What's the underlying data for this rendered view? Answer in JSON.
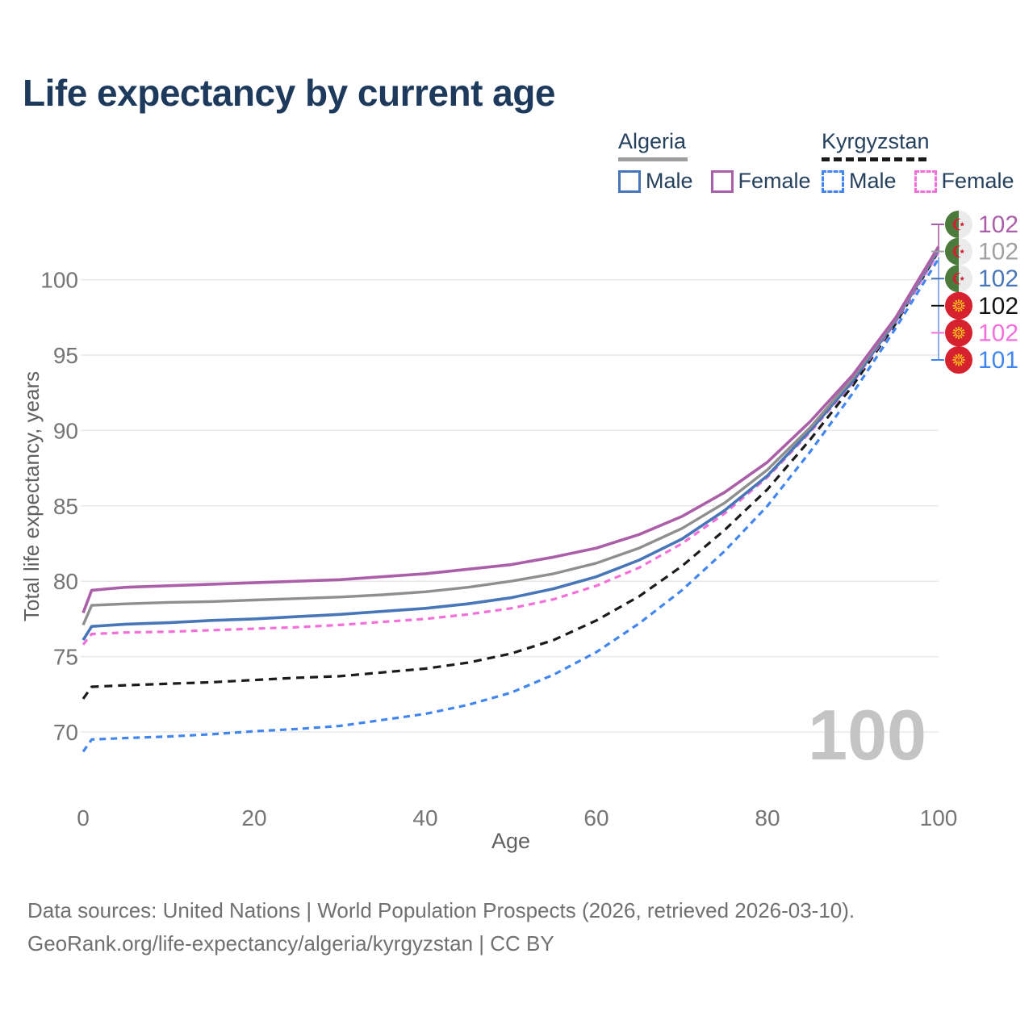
{
  "title": "Life expectancy by current age",
  "colors": {
    "title_text": "#1d3a5c",
    "axis_text": "#757575",
    "gridline": "#e8e8e8",
    "watermark": "#c4c4c4",
    "leader_bracket": "#6f9ce0",
    "algeria_flag_green": "#4c7a3c",
    "algeria_flag_white": "#ebebeb",
    "algeria_flag_red": "#d21f34",
    "kyrgyzstan_flag_red": "#d6212f",
    "kyrgyzstan_flag_yellow": "#fdcd1f"
  },
  "legend": {
    "groups": [
      {
        "country": "Algeria",
        "underline_color": "#9e9e9e",
        "underline_style": "solid",
        "underline_width": 86,
        "items": [
          {
            "label": "Male",
            "color": "#4776b9",
            "dashed": false
          },
          {
            "label": "Female",
            "color": "#ab5fa8",
            "dashed": false
          }
        ]
      },
      {
        "country": "Kyrgyzstan",
        "underline_color": "#1b1b1b",
        "underline_style": "dashed",
        "underline_width": 130,
        "items": [
          {
            "label": "Male",
            "color": "#4186f0",
            "dashed": true
          },
          {
            "label": "Female",
            "color": "#f36fd9",
            "dashed": true
          }
        ]
      }
    ]
  },
  "chart_data": {
    "type": "line",
    "title": "Life expectancy by current age",
    "xlabel": "Age",
    "ylabel": "Total life expectancy, years",
    "xlim": [
      0,
      100
    ],
    "ylim": [
      67,
      104
    ],
    "x_ticks": [
      0,
      20,
      40,
      60,
      80,
      100
    ],
    "y_ticks": [
      70,
      75,
      80,
      85,
      90,
      95,
      100
    ],
    "grid": "horizontal-only",
    "legend_position": "top-right",
    "x": [
      0,
      1,
      5,
      10,
      15,
      20,
      25,
      30,
      35,
      40,
      45,
      50,
      55,
      60,
      65,
      70,
      75,
      80,
      85,
      90,
      95,
      100
    ],
    "series": [
      {
        "name": "Algeria Female",
        "color": "#ab5fa8",
        "dash": null,
        "width": 3.6,
        "values": [
          77.9,
          79.4,
          79.6,
          79.7,
          79.8,
          79.9,
          80.0,
          80.1,
          80.3,
          80.5,
          80.8,
          81.1,
          81.6,
          82.2,
          83.1,
          84.3,
          85.9,
          87.9,
          90.6,
          93.7,
          97.5,
          102.2
        ]
      },
      {
        "name": "Algeria Both sexes",
        "color": "#8f8f8f",
        "dash": null,
        "width": 3.4,
        "values": [
          77.1,
          78.4,
          78.5,
          78.6,
          78.65,
          78.75,
          78.85,
          78.95,
          79.1,
          79.3,
          79.6,
          80.0,
          80.5,
          81.2,
          82.2,
          83.5,
          85.2,
          87.4,
          90.2,
          93.5,
          97.4,
          102.1
        ]
      },
      {
        "name": "Algeria Male",
        "color": "#4776b9",
        "dash": null,
        "width": 3.6,
        "values": [
          76.1,
          77.0,
          77.15,
          77.25,
          77.4,
          77.5,
          77.65,
          77.8,
          78.0,
          78.2,
          78.5,
          78.9,
          79.5,
          80.3,
          81.4,
          82.8,
          84.7,
          87.0,
          90.0,
          93.3,
          97.3,
          102.0
        ]
      },
      {
        "name": "Kyrgyzstan Both sexes",
        "color": "#1b1b1b",
        "dash": "10 7",
        "width": 3.2,
        "values": [
          72.2,
          73.0,
          73.1,
          73.2,
          73.3,
          73.45,
          73.6,
          73.7,
          73.95,
          74.2,
          74.6,
          75.2,
          76.1,
          77.4,
          79.0,
          81.0,
          83.4,
          86.1,
          89.4,
          93.0,
          97.1,
          101.9
        ]
      },
      {
        "name": "Kyrgyzstan Female",
        "color": "#f36fd9",
        "dash": "8 6",
        "width": 3.2,
        "values": [
          75.8,
          76.5,
          76.6,
          76.65,
          76.75,
          76.85,
          76.95,
          77.1,
          77.3,
          77.5,
          77.8,
          78.2,
          78.8,
          79.7,
          80.9,
          82.5,
          84.5,
          86.9,
          89.9,
          93.2,
          97.2,
          101.8
        ]
      },
      {
        "name": "Kyrgyzstan Male",
        "color": "#4186f0",
        "dash": "8 6",
        "width": 3.2,
        "values": [
          68.7,
          69.5,
          69.6,
          69.7,
          69.85,
          70.05,
          70.2,
          70.4,
          70.8,
          71.2,
          71.8,
          72.6,
          73.8,
          75.3,
          77.2,
          79.4,
          82.0,
          85.0,
          88.6,
          92.5,
          96.8,
          101.4
        ]
      }
    ],
    "end_labels": [
      {
        "flag_icon": "algeria-flag-icon",
        "value": "102",
        "label_color": "#ab5fa8"
      },
      {
        "flag_icon": "algeria-flag-icon",
        "value": "102",
        "label_color": "#a0a0a0"
      },
      {
        "flag_icon": "algeria-flag-icon",
        "value": "102",
        "label_color": "#4776b9"
      },
      {
        "flag_icon": "kyrgyzstan-flag-icon",
        "value": "102",
        "label_color": "#111111"
      },
      {
        "flag_icon": "kyrgyzstan-flag-icon",
        "value": "102",
        "label_color": "#f36fd9"
      },
      {
        "flag_icon": "kyrgyzstan-flag-icon",
        "value": "101",
        "label_color": "#4186f0"
      }
    ],
    "watermark": "100"
  },
  "footer": {
    "line1": "Data sources: United Nations | World Population Prospects (2026, retrieved 2026-03-10).",
    "line2": "GeoRank.org/life-expectancy/algeria/kyrgyzstan | CC BY"
  }
}
